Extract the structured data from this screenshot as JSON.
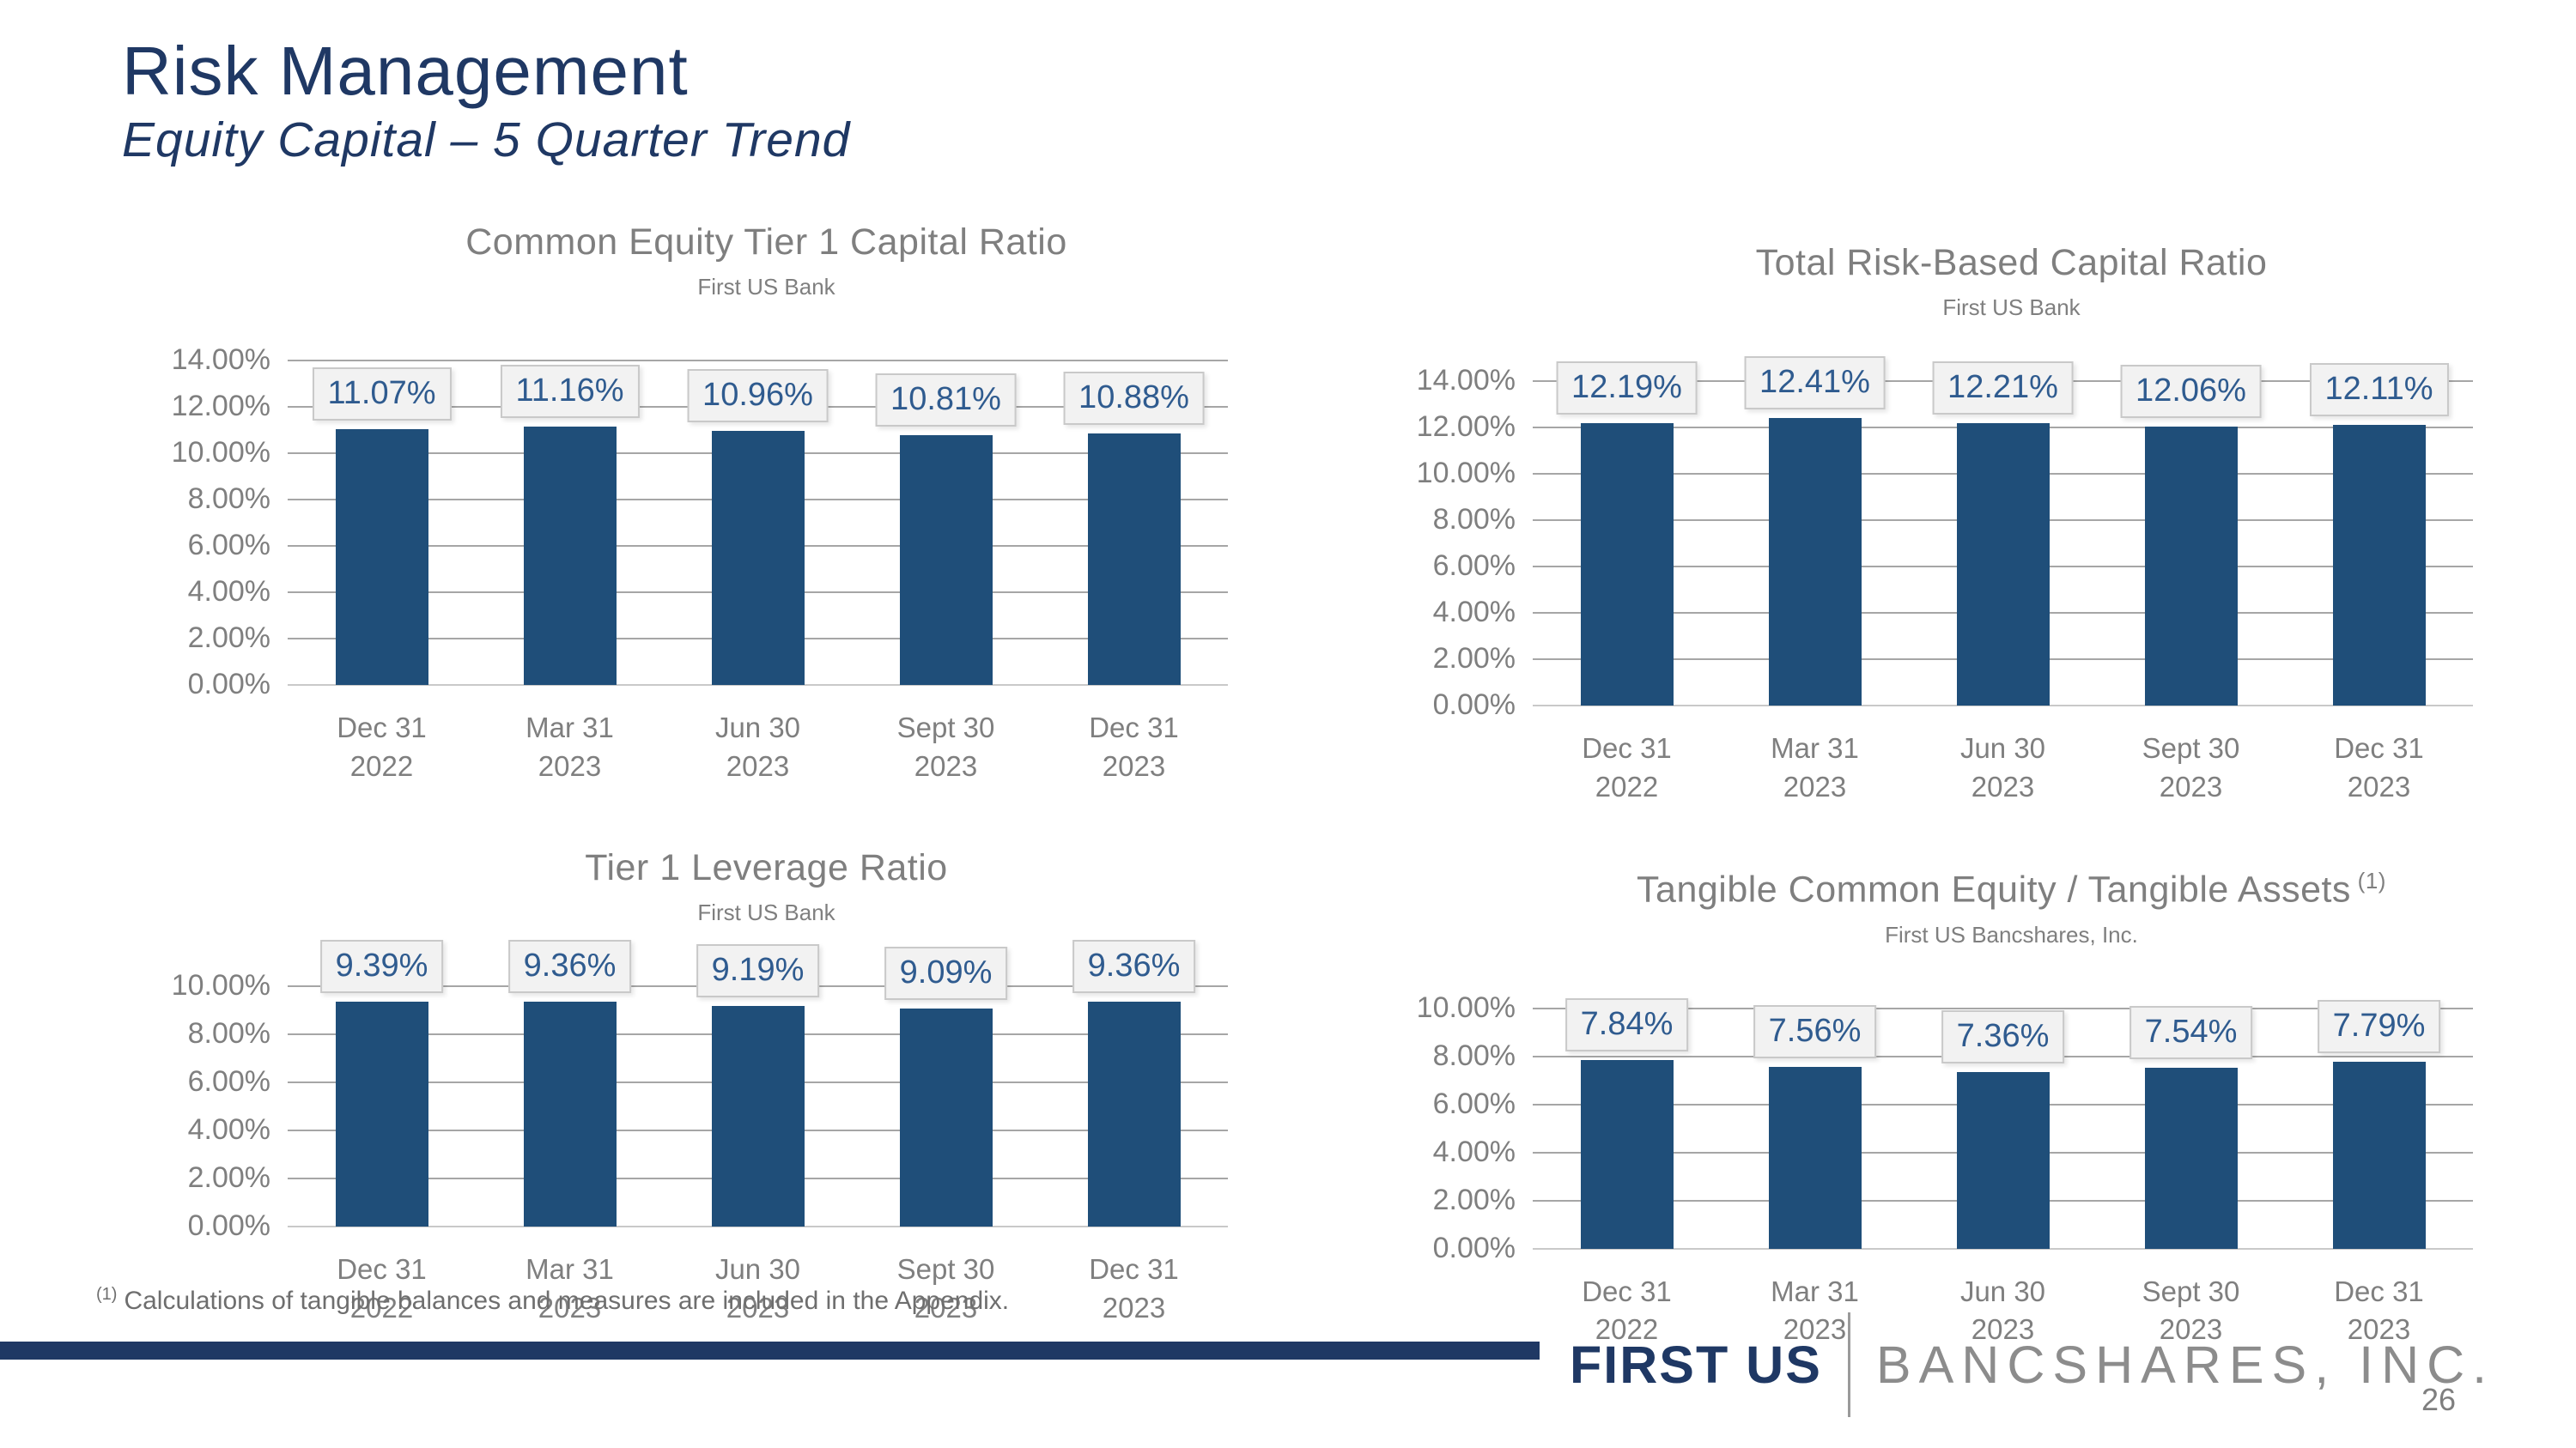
{
  "slide": {
    "title": "Risk Management",
    "subtitle": "Equity Capital – 5 Quarter Trend",
    "footnote_marker": "(1)",
    "footnote_text": "Calculations of tangible balances and measures are included in the Appendix."
  },
  "footer": {
    "logo_primary": "FIRST US",
    "logo_secondary": "BANCSHARES, INC.",
    "page_number": "26"
  },
  "colors": {
    "navy": "#1F3864",
    "bar": "#1F4E79",
    "label-text": "#2F5B8F",
    "label-bg": "#F2F2F2",
    "label-border": "#C9C9C9",
    "gridline": "#A6A6A6",
    "axis-text": "#7F7F7F",
    "chart-title": "#7F7F7F",
    "footnote": "#6E6E6E",
    "logo-gray": "#8C8C8C"
  },
  "category_lines": [
    [
      "Dec 31",
      "2022"
    ],
    [
      "Mar 31",
      "2023"
    ],
    [
      "Jun 30",
      "2023"
    ],
    [
      "Sept 30",
      "2023"
    ],
    [
      "Dec 31",
      "2023"
    ]
  ],
  "chart_data": [
    {
      "type": "bar",
      "title": "Common Equity Tier 1 Capital Ratio",
      "subtitle": "First US Bank",
      "categories": [
        "Dec 31 2022",
        "Mar 31 2023",
        "Jun 30 2023",
        "Sept 30 2023",
        "Dec 31 2023"
      ],
      "values": [
        11.07,
        11.16,
        10.96,
        10.81,
        10.88
      ],
      "labels": [
        "11.07%",
        "11.16%",
        "10.96%",
        "10.81%",
        "10.88%"
      ],
      "ylim": [
        0,
        14
      ],
      "ytick_step": 2,
      "yticks": [
        "14.00%",
        "12.00%",
        "10.00%",
        "8.00%",
        "6.00%",
        "4.00%",
        "2.00%",
        "0.00%"
      ],
      "grid": true,
      "legend": "none"
    },
    {
      "type": "bar",
      "title": "Total Risk-Based Capital Ratio",
      "subtitle": "First US Bank",
      "categories": [
        "Dec 31 2022",
        "Mar 31 2023",
        "Jun 30 2023",
        "Sept 30 2023",
        "Dec 31 2023"
      ],
      "values": [
        12.19,
        12.41,
        12.21,
        12.06,
        12.11
      ],
      "labels": [
        "12.19%",
        "12.41%",
        "12.21%",
        "12.06%",
        "12.11%"
      ],
      "ylim": [
        0,
        14
      ],
      "ytick_step": 2,
      "yticks": [
        "14.00%",
        "12.00%",
        "10.00%",
        "8.00%",
        "6.00%",
        "4.00%",
        "2.00%",
        "0.00%"
      ],
      "grid": true,
      "legend": "none"
    },
    {
      "type": "bar",
      "title": "Tier 1 Leverage Ratio",
      "subtitle": "First US Bank",
      "categories": [
        "Dec 31 2022",
        "Mar 31 2023",
        "Jun 30 2023",
        "Sept 30 2023",
        "Dec 31 2023"
      ],
      "values": [
        9.39,
        9.36,
        9.19,
        9.09,
        9.36
      ],
      "labels": [
        "9.39%",
        "9.36%",
        "9.19%",
        "9.09%",
        "9.36%"
      ],
      "ylim": [
        0,
        10
      ],
      "ytick_step": 2,
      "yticks": [
        "10.00%",
        "8.00%",
        "6.00%",
        "4.00%",
        "2.00%",
        "0.00%"
      ],
      "grid": true,
      "legend": "none"
    },
    {
      "type": "bar",
      "title": "Tangible Common Equity / Tangible Assets",
      "title_sup": "(1)",
      "subtitle": "First US Bancshares, Inc.",
      "categories": [
        "Dec 31 2022",
        "Mar 31 2023",
        "Jun 30 2023",
        "Sept 30 2023",
        "Dec 31 2023"
      ],
      "values": [
        7.84,
        7.56,
        7.36,
        7.54,
        7.79
      ],
      "labels": [
        "7.84%",
        "7.56%",
        "7.36%",
        "7.54%",
        "7.79%"
      ],
      "ylim": [
        0,
        10
      ],
      "ytick_step": 2,
      "yticks": [
        "10.00%",
        "8.00%",
        "6.00%",
        "4.00%",
        "2.00%",
        "0.00%"
      ],
      "grid": true,
      "legend": "none"
    }
  ]
}
